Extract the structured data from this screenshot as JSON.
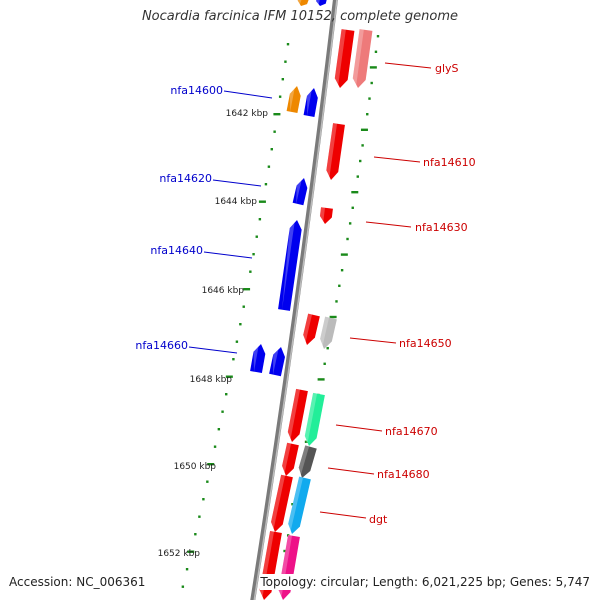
{
  "title": "Nocardia farcinica IFM 10152, complete genome",
  "accession_text": "Accession: NC_006361",
  "summary_text": "Topology: circular; Length: 6,021,225 bp; Genes: 5,747",
  "colors": {
    "backbone": "#7a7a7a",
    "tick": "#1a8a1a",
    "label_plus": "#0000cc",
    "label_minus": "#cc0000",
    "gene_red": "#ee0000",
    "gene_blue": "#0000ee",
    "gene_orange": "#ee8800",
    "gene_pink": "#ee7a7a",
    "gene_grey": "#bbbbbb",
    "gene_dark": "#555555",
    "gene_green": "#22ee99",
    "gene_cyan": "#11aaee",
    "gene_magenta": "#ee1188"
  },
  "scale_labels": [
    {
      "text": "1642 kbp",
      "kbp": 1642
    },
    {
      "text": "1644 kbp",
      "kbp": 1644
    },
    {
      "text": "1646 kbp",
      "kbp": 1646
    },
    {
      "text": "1648 kbp",
      "kbp": 1648
    },
    {
      "text": "1650 kbp",
      "kbp": 1650
    },
    {
      "text": "1652 kbp",
      "kbp": 1652
    }
  ],
  "gene_labels": [
    {
      "name": "glyS",
      "strand": "minus"
    },
    {
      "name": "nfa14600",
      "strand": "plus"
    },
    {
      "name": "nfa14610",
      "strand": "minus"
    },
    {
      "name": "nfa14620",
      "strand": "plus"
    },
    {
      "name": "nfa14630",
      "strand": "minus"
    },
    {
      "name": "nfa14640",
      "strand": "plus"
    },
    {
      "name": "nfa14650",
      "strand": "minus"
    },
    {
      "name": "nfa14660",
      "strand": "plus"
    },
    {
      "name": "nfa14670",
      "strand": "minus"
    },
    {
      "name": "nfa14680",
      "strand": "minus"
    },
    {
      "name": "dgt",
      "strand": "minus"
    }
  ]
}
